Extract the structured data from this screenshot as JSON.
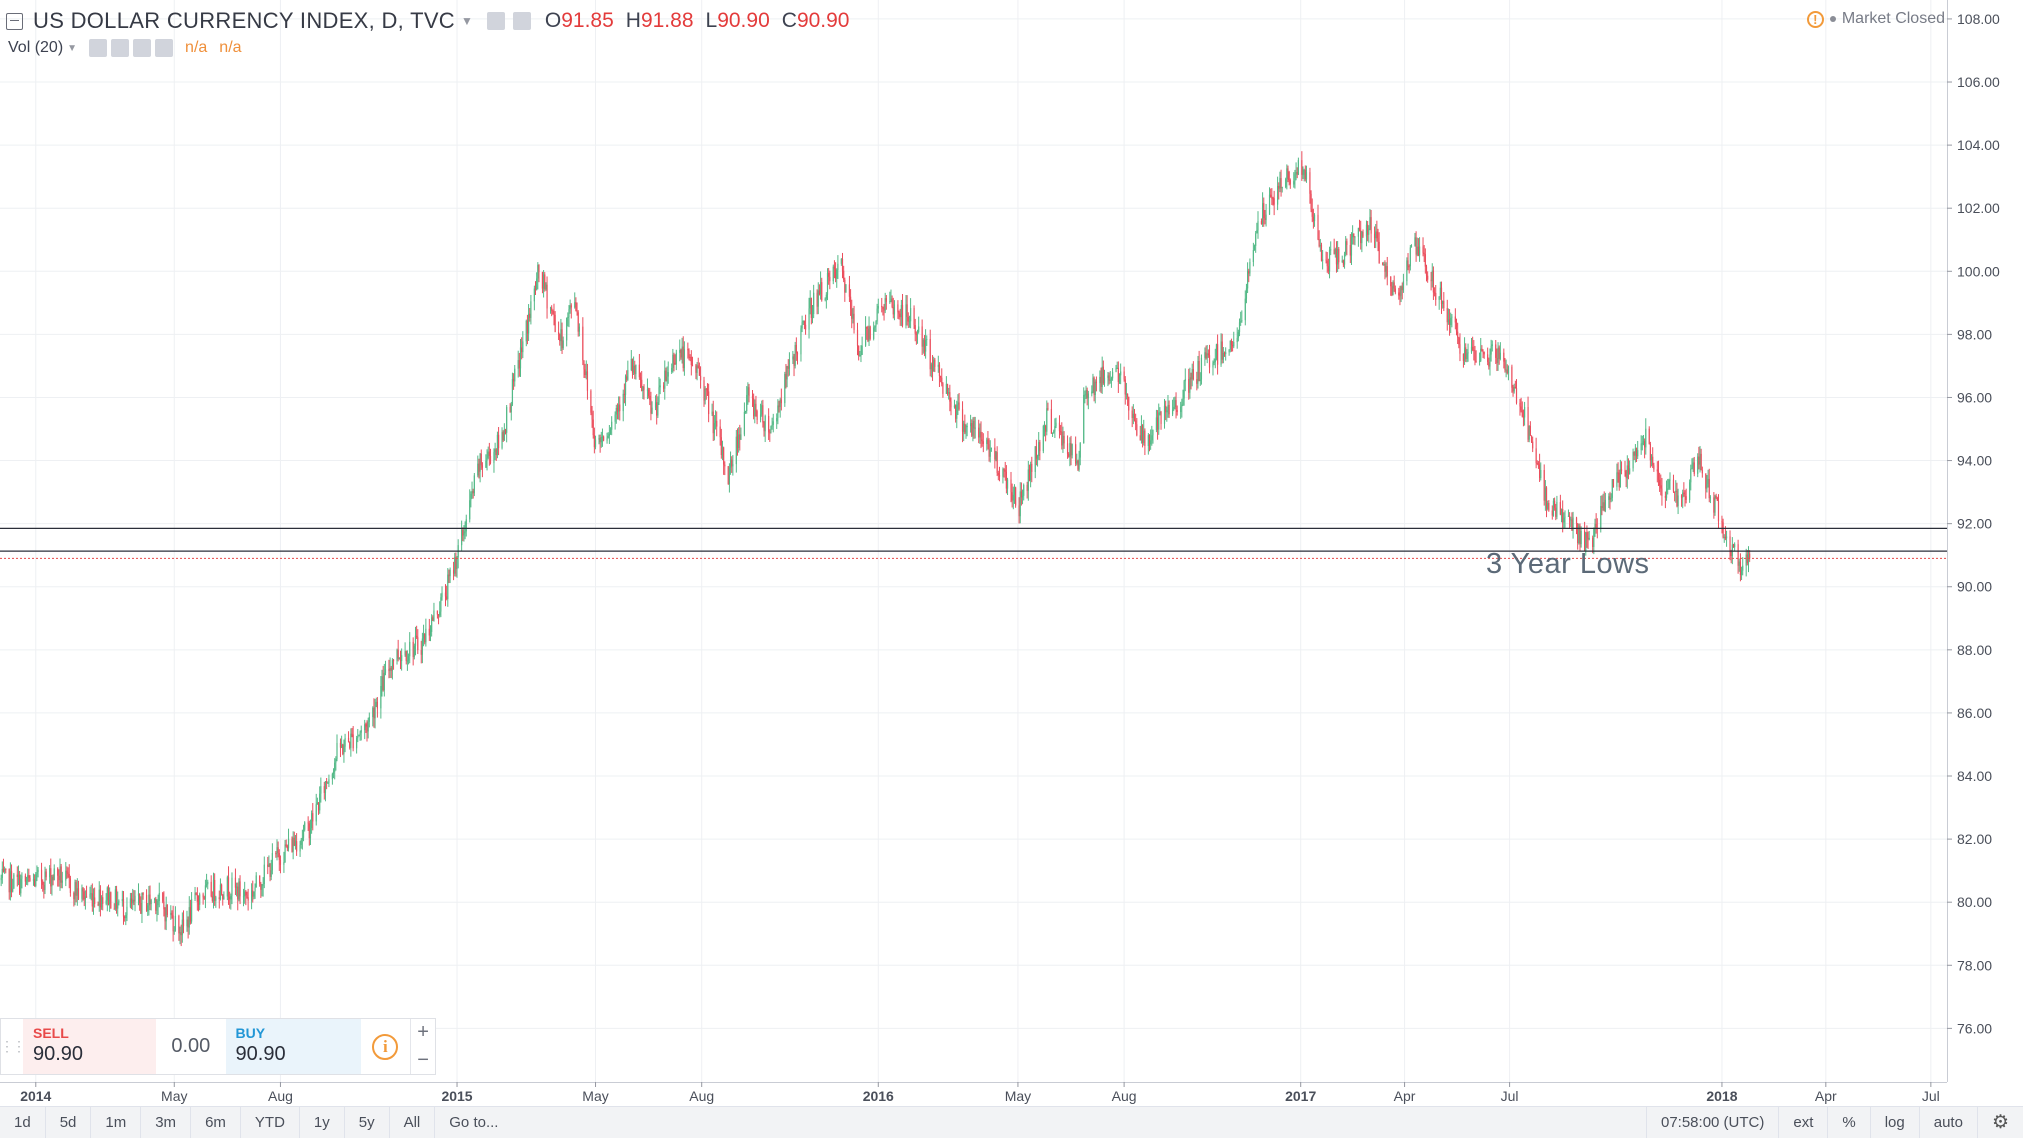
{
  "header": {
    "symbol": "US DOLLAR CURRENCY INDEX, D, TVC",
    "open_label": "O",
    "open": "91.85",
    "high_label": "H",
    "high": "91.88",
    "low_label": "L",
    "low": "90.90",
    "close_label": "C",
    "close": "90.90",
    "volume_label": "Vol (20)",
    "volume_value_1": "n/a",
    "volume_value_2": "n/a",
    "market_status": "Market Closed"
  },
  "chart_data": {
    "type": "candlestick",
    "title": "US DOLLAR CURRENCY INDEX, D, TVC",
    "xlabel": "",
    "ylabel": "",
    "ylim": [
      74.3,
      108.6
    ],
    "grid": true,
    "y_ticks": [
      "76.00",
      "78.00",
      "80.00",
      "82.00",
      "84.00",
      "86.00",
      "88.00",
      "90.00",
      "92.00",
      "94.00",
      "96.00",
      "98.00",
      "100.00",
      "102.00",
      "104.00",
      "106.00",
      "108.00"
    ],
    "x_ticks": [
      "2014",
      "May",
      "Aug",
      "2015",
      "May",
      "Aug",
      "2016",
      "May",
      "Aug",
      "2017",
      "Apr",
      "Jul",
      "2018",
      "Apr",
      "Jul"
    ],
    "x_tick_dates": [
      "2014-01-01",
      "2014-05-01",
      "2014-08-01",
      "2015-01-01",
      "2015-05-01",
      "2015-08-01",
      "2016-01-01",
      "2016-05-01",
      "2016-08-01",
      "2017-01-01",
      "2017-04-01",
      "2017-07-01",
      "2018-01-01",
      "2018-04-01",
      "2018-07-01"
    ],
    "bold_ticks": [
      "2014",
      "2015",
      "2016",
      "2017",
      "2018"
    ],
    "x_range": [
      "2013-12-01",
      "2018-07-15"
    ],
    "path_dates": [
      "2013-12-01",
      "2013-12-25",
      "2014-01-20",
      "2014-02-10",
      "2014-03-05",
      "2014-03-20",
      "2014-04-15",
      "2014-05-08",
      "2014-05-22",
      "2014-06-15",
      "2014-07-05",
      "2014-07-28",
      "2014-08-25",
      "2014-09-20",
      "2014-10-15",
      "2014-11-07",
      "2014-12-01",
      "2014-12-22",
      "2015-01-05",
      "2015-01-20",
      "2015-02-08",
      "2015-03-01",
      "2015-03-13",
      "2015-04-01",
      "2015-04-13",
      "2015-05-01",
      "2015-05-15",
      "2015-06-01",
      "2015-06-20",
      "2015-07-10",
      "2015-07-30",
      "2015-08-24",
      "2015-09-10",
      "2015-09-30",
      "2015-10-15",
      "2015-11-05",
      "2015-11-30",
      "2015-12-15",
      "2016-01-05",
      "2016-01-29",
      "2016-02-20",
      "2016-03-15",
      "2016-04-05",
      "2016-05-02",
      "2016-05-27",
      "2016-06-23",
      "2016-06-27",
      "2016-07-25",
      "2016-08-18",
      "2016-09-15",
      "2016-10-10",
      "2016-11-08",
      "2016-11-24",
      "2016-12-20",
      "2017-01-03",
      "2017-01-20",
      "2017-02-06",
      "2017-03-01",
      "2017-03-24",
      "2017-04-10",
      "2017-05-05",
      "2017-05-25",
      "2017-06-20",
      "2017-07-10",
      "2017-07-31",
      "2017-09-08",
      "2017-09-25",
      "2017-10-10",
      "2017-10-27",
      "2017-11-10",
      "2017-11-27",
      "2017-12-12",
      "2018-01-02",
      "2018-01-17",
      "2018-01-25"
    ],
    "path_values": [
      80.7,
      80.6,
      80.9,
      80.2,
      80.2,
      79.8,
      80.1,
      79.1,
      80.2,
      80.5,
      80.2,
      81.4,
      82.3,
      84.8,
      85.6,
      87.8,
      88.2,
      89.8,
      91.5,
      93.8,
      94.6,
      98.0,
      100.0,
      97.8,
      99.2,
      94.5,
      95.2,
      97.0,
      95.5,
      97.5,
      96.8,
      93.5,
      96.0,
      95.0,
      96.8,
      99.0,
      100.1,
      97.5,
      99.0,
      98.5,
      96.9,
      95.2,
      94.5,
      92.6,
      95.4,
      93.8,
      96.2,
      96.9,
      94.6,
      95.8,
      97.1,
      97.9,
      101.5,
      103.0,
      103.3,
      100.3,
      100.5,
      101.5,
      99.2,
      100.8,
      98.9,
      97.2,
      97.4,
      95.9,
      92.9,
      91.3,
      92.9,
      93.7,
      94.8,
      93.2,
      92.8,
      94.0,
      91.9,
      90.6,
      90.9
    ],
    "horizontal_lines": [
      91.85,
      91.13,
      90.9
    ],
    "price_labels": [
      "91.85",
      "91.13",
      "90.90"
    ],
    "annotations": [
      "3 Year Lows"
    ],
    "up_color": "#53b987",
    "down_color": "#eb4d5c",
    "last_price_color": "#e84a4a"
  },
  "trade": {
    "sell_label": "SELL",
    "sell_price": "90.90",
    "spread": "0.00",
    "buy_label": "BUY",
    "buy_price": "90.90",
    "plus": "+",
    "minus": "−"
  },
  "toolbar": {
    "ranges": [
      "1d",
      "5d",
      "1m",
      "3m",
      "6m",
      "YTD",
      "1y",
      "5y",
      "All"
    ],
    "goto": "Go to...",
    "time": "07:58:00 (UTC)",
    "options": [
      "ext",
      "%",
      "log",
      "auto"
    ]
  }
}
